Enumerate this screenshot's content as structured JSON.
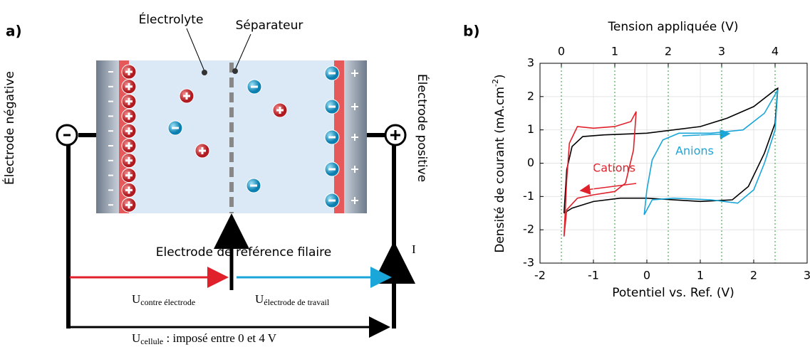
{
  "panel_a": {
    "label": "a)",
    "electrolyte": "Électrolyte",
    "separator": "Séparateur",
    "negative_electrode": "Électrode négative",
    "positive_electrode": "Électrode positive",
    "reference_electrode": "Electrode de référence filaire",
    "current": "I",
    "u_counter": {
      "symbol": "U",
      "subscript": "contre électrode"
    },
    "u_working": {
      "symbol": "U",
      "subscript": "électrode de travail"
    },
    "u_cell": {
      "symbol": "U",
      "subscript": "cellule",
      "text": " : imposé entre 0 et 4 V"
    }
  },
  "chart_data": {
    "type": "line",
    "label": "b)",
    "xlabel": "Potentiel  vs. Ref. (V)",
    "ylabel": {
      "text": "Densité de courant (mA.cm",
      "sup": "-2",
      "end": ")"
    },
    "x2label": "Tension appliquée (V)",
    "xlim": [
      -2,
      3
    ],
    "xticks": [
      -2,
      -1,
      0,
      1,
      2,
      3
    ],
    "ylim": [
      -3,
      3
    ],
    "yticks": [
      -3,
      -2,
      -1,
      0,
      1,
      2,
      3
    ],
    "x2lim": [
      -0.4,
      4.6
    ],
    "x2ticks": [
      0,
      1,
      2,
      3,
      4
    ],
    "x2grid_color": "#2a9a3a",
    "grid": true,
    "annotations": [
      "Cations",
      "Anions"
    ],
    "series": [
      {
        "color": "#000000",
        "x": [
          -1.55,
          -1.5,
          -1.4,
          -1.2,
          -0.8,
          0,
          1,
          1.5,
          2,
          2.4,
          2.45,
          2.4,
          2.2,
          1.9,
          1.6,
          1,
          0,
          -0.5,
          -1.0,
          -1.4,
          -1.55
        ],
        "values": [
          -1.5,
          -0.2,
          0.5,
          0.8,
          0.85,
          0.9,
          1.1,
          1.35,
          1.7,
          2.2,
          2.25,
          1.2,
          0.3,
          -0.7,
          -1.1,
          -1.15,
          -1.05,
          -1.05,
          -1.15,
          -1.35,
          -1.5
        ]
      },
      {
        "color": "#e0202a",
        "x": [
          -1.55,
          -1.5,
          -1.45,
          -1.3,
          -1.0,
          -0.6,
          -0.3,
          -0.2,
          -0.25,
          -0.4,
          -0.6,
          -1.0,
          -1.3,
          -1.5,
          -1.55
        ],
        "values": [
          -2.2,
          -0.5,
          0.6,
          1.1,
          1.05,
          1.1,
          1.25,
          1.55,
          0.4,
          -0.6,
          -0.85,
          -0.95,
          -1.05,
          -1.4,
          -2.2
        ]
      },
      {
        "color": "#1aa6d8",
        "x": [
          -0.05,
          0,
          0.1,
          0.3,
          0.6,
          1.2,
          1.8,
          2.2,
          2.45,
          2.4,
          2.2,
          2,
          1.7,
          1.2,
          0.5,
          0.1,
          -0.05
        ],
        "values": [
          -1.55,
          -0.8,
          0.1,
          0.7,
          0.9,
          0.9,
          1.0,
          1.5,
          2.2,
          1.0,
          0,
          -0.8,
          -1.2,
          -1.1,
          -1.05,
          -1.1,
          -1.55
        ]
      }
    ]
  }
}
